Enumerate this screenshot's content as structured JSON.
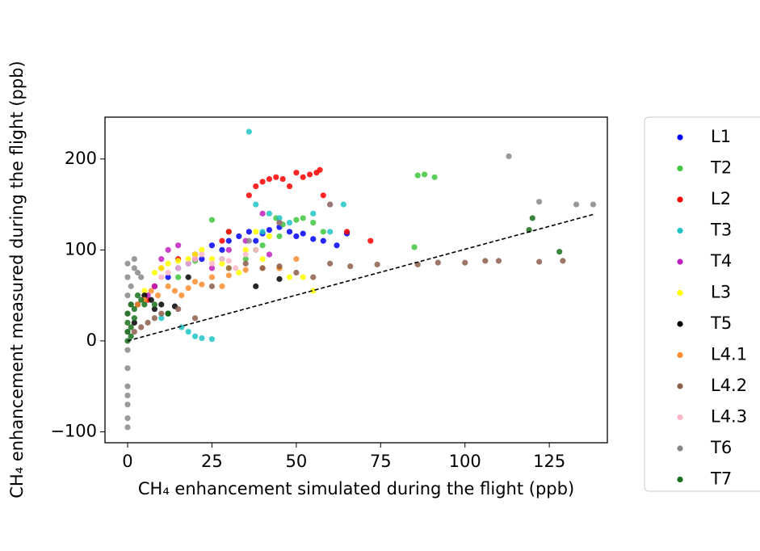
{
  "chart_data": {
    "type": "scatter",
    "xlabel": "CH₄ enhancement simulated during the flight (ppb)",
    "ylabel": "CH₄ enhancement measured during the flight (ppb)",
    "xlim": [
      -6.7,
      142.2
    ],
    "ylim": [
      -112,
      246
    ],
    "xticks": [
      0,
      25,
      50,
      75,
      100,
      125
    ],
    "yticks": [
      {
        "value": -100,
        "label": "−100"
      },
      0,
      100,
      200
    ],
    "reference_line": {
      "x": [
        0,
        138
      ],
      "y": [
        0,
        139
      ]
    },
    "series": [
      {
        "name": "L1",
        "color": "#0000ff",
        "x": [
          25,
          28,
          30,
          33,
          36,
          38,
          40,
          42,
          45,
          48,
          50,
          52,
          55,
          58,
          62,
          65,
          20,
          22,
          15,
          18,
          12,
          8
        ],
        "values": [
          105,
          100,
          110,
          115,
          120,
          110,
          118,
          122,
          125,
          120,
          115,
          118,
          112,
          110,
          105,
          118,
          95,
          90,
          80,
          85,
          70,
          60
        ]
      },
      {
        "name": "T2",
        "color": "#3fc63f",
        "x": [
          25,
          30,
          40,
          44,
          46,
          50,
          52,
          55,
          58,
          86,
          88,
          91,
          85,
          45,
          38,
          35,
          20,
          15
        ],
        "values": [
          133,
          120,
          105,
          135,
          128,
          133,
          135,
          130,
          120,
          182,
          183,
          180,
          103,
          115,
          100,
          90,
          88,
          70
        ]
      },
      {
        "name": "L2",
        "color": "#ff0000",
        "x": [
          36,
          38,
          40,
          42,
          44,
          46,
          48,
          50,
          52,
          54,
          56,
          57,
          58,
          60,
          45,
          30,
          28,
          20,
          15,
          10,
          8,
          72,
          65,
          6
        ],
        "values": [
          160,
          170,
          175,
          178,
          180,
          178,
          170,
          185,
          180,
          183,
          185,
          188,
          160,
          150,
          130,
          120,
          110,
          95,
          90,
          80,
          60,
          110,
          120,
          45
        ]
      },
      {
        "name": "T3",
        "color": "#1fc4c4",
        "x": [
          36,
          38,
          40,
          42,
          45,
          48,
          55,
          60,
          64,
          16,
          18,
          20,
          22,
          25,
          28,
          10,
          12
        ],
        "values": [
          230,
          150,
          120,
          140,
          135,
          130,
          140,
          120,
          150,
          15,
          10,
          5,
          3,
          2,
          90,
          25,
          30
        ]
      },
      {
        "name": "T4",
        "color": "#c020c0",
        "x": [
          10,
          12,
          15,
          20,
          25,
          30,
          35,
          40,
          42,
          45,
          8,
          6
        ],
        "values": [
          90,
          100,
          105,
          90,
          80,
          100,
          110,
          140,
          95,
          80,
          60,
          50
        ]
      },
      {
        "name": "L3",
        "color": "#ffff00",
        "x": [
          5,
          8,
          10,
          12,
          15,
          18,
          20,
          22,
          25,
          28,
          30,
          33,
          35,
          40,
          45,
          48,
          52,
          55,
          38,
          42
        ],
        "values": [
          55,
          75,
          80,
          85,
          88,
          90,
          95,
          100,
          90,
          85,
          80,
          75,
          100,
          90,
          80,
          70,
          70,
          55,
          120,
          115
        ]
      },
      {
        "name": "T5",
        "color": "#000000",
        "x": [
          3,
          5,
          7,
          8,
          10,
          12,
          14,
          18,
          38,
          45,
          2
        ],
        "values": [
          40,
          50,
          45,
          35,
          40,
          30,
          38,
          70,
          60,
          68,
          20
        ]
      },
      {
        "name": "L4.1",
        "color": "#ff8c30",
        "x": [
          3,
          5,
          7,
          9,
          12,
          14,
          16,
          18,
          20,
          22,
          25,
          28,
          30,
          35,
          40,
          45,
          50
        ],
        "values": [
          40,
          45,
          55,
          50,
          60,
          55,
          50,
          58,
          65,
          62,
          70,
          60,
          72,
          78,
          80,
          80,
          90
        ]
      },
      {
        "name": "L4.2",
        "color": "#8c5e4c",
        "x": [
          2,
          4,
          6,
          8,
          10,
          15,
          20,
          25,
          30,
          35,
          40,
          45,
          50,
          55,
          60,
          66,
          74,
          86,
          92,
          100,
          106,
          110,
          122,
          129
        ],
        "values": [
          10,
          15,
          20,
          25,
          30,
          35,
          25,
          60,
          80,
          85,
          80,
          82,
          75,
          70,
          85,
          82,
          84,
          84,
          86,
          86,
          88,
          88,
          87,
          88
        ]
      },
      {
        "name": "L4.3",
        "color": "#ffb6c8",
        "x": [
          10,
          12,
          15,
          18,
          20,
          22,
          25,
          28,
          30,
          32,
          35,
          38
        ],
        "values": [
          70,
          75,
          80,
          85,
          90,
          95,
          85,
          90,
          88,
          80,
          95,
          100
        ]
      },
      {
        "name": "T6",
        "color": "#888888",
        "x": [
          0,
          0,
          0,
          0,
          0,
          0,
          0,
          0,
          0,
          0,
          0,
          0,
          1,
          1,
          2,
          2,
          3,
          4,
          113,
          122,
          133,
          138,
          36,
          45,
          60
        ],
        "values": [
          -95,
          -85,
          -70,
          -50,
          -30,
          -10,
          10,
          30,
          50,
          70,
          85,
          -60,
          60,
          40,
          80,
          90,
          75,
          70,
          203,
          153,
          150,
          150,
          110,
          130,
          150
        ]
      },
      {
        "name": "T7",
        "color": "#16701a",
        "x": [
          0,
          0,
          0,
          0,
          1,
          1,
          1,
          2,
          2,
          3,
          4,
          5,
          8,
          12,
          119,
          120,
          128
        ],
        "values": [
          0,
          10,
          20,
          30,
          40,
          15,
          5,
          25,
          35,
          50,
          45,
          40,
          40,
          30,
          122,
          135,
          98
        ]
      }
    ]
  }
}
